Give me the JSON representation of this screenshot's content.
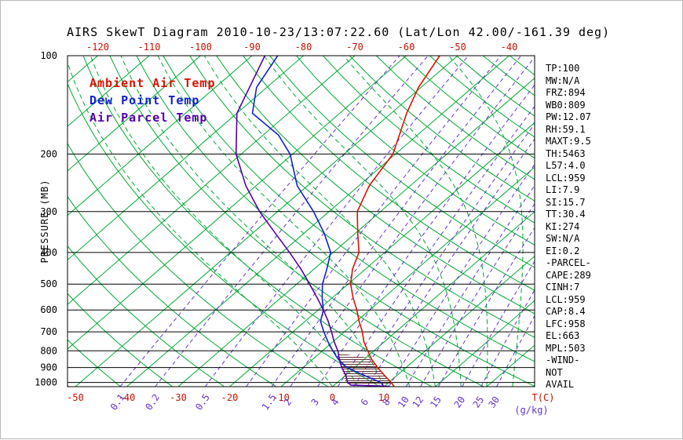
{
  "chart_data": {
    "type": "line",
    "title": "AIRS SkewT Diagram 2010-10-23/13:07:22.60 (Lat/Lon 42.00/-161.39 deg)",
    "x_axis": {
      "label": "T(C)",
      "unit": "C",
      "top_tick_labels": [
        -120,
        -110,
        -100,
        -90,
        -80,
        -70,
        -60,
        -50,
        -40
      ],
      "bottom_tick_labels": [
        -50,
        -40,
        -30,
        -20,
        -10,
        0,
        10
      ]
    },
    "y_axis": {
      "label": "PRESSURE (MB)",
      "scale": "log",
      "ticks": [
        100,
        200,
        300,
        400,
        500,
        600,
        700,
        800,
        900,
        1000
      ],
      "range": [
        100,
        1030
      ]
    },
    "mixing_ratio": {
      "label": "(g/kg)",
      "tick_labels": [
        0.1,
        0.2,
        0.5,
        1.5,
        2,
        3,
        4,
        6,
        8,
        10,
        12,
        15,
        20,
        25,
        30
      ],
      "line_values": [
        0.1,
        0.2,
        0.5,
        1,
        1.5,
        2,
        3,
        4,
        5,
        6,
        8,
        10,
        12,
        15,
        20,
        25,
        30
      ]
    },
    "isotherms": {
      "min": -120,
      "max": 40,
      "step": 10
    },
    "dry_adiabats_K": {
      "min": 220,
      "max": 460,
      "step": 10
    },
    "moist_adiabats_C": [
      0,
      5,
      10,
      15,
      20,
      25,
      30,
      35,
      40,
      45,
      50
    ],
    "series": [
      {
        "name": "Ambient Air Temp",
        "color": "#dd1100",
        "points": [
          [
            1030,
            12
          ],
          [
            1000,
            10.5
          ],
          [
            950,
            7.5
          ],
          [
            900,
            4.5
          ],
          [
            850,
            1.5
          ],
          [
            800,
            -1.2
          ],
          [
            750,
            -4
          ],
          [
            700,
            -6.5
          ],
          [
            650,
            -9.5
          ],
          [
            600,
            -12.5
          ],
          [
            550,
            -16
          ],
          [
            500,
            -19.5
          ],
          [
            450,
            -22.5
          ],
          [
            400,
            -25
          ],
          [
            350,
            -29.5
          ],
          [
            300,
            -34.5
          ],
          [
            250,
            -38
          ],
          [
            200,
            -40.5
          ],
          [
            175,
            -43.5
          ],
          [
            150,
            -47
          ],
          [
            125,
            -50.5
          ],
          [
            100,
            -53.5
          ]
        ]
      },
      {
        "name": "Dew Point Temp",
        "color": "#1122cc",
        "points": [
          [
            1030,
            10
          ],
          [
            1000,
            8.5
          ],
          [
            950,
            3.5
          ],
          [
            900,
            -1.5
          ],
          [
            850,
            -5
          ],
          [
            800,
            -8
          ],
          [
            750,
            -11
          ],
          [
            700,
            -14
          ],
          [
            650,
            -17
          ],
          [
            600,
            -19
          ],
          [
            550,
            -22
          ],
          [
            500,
            -25
          ],
          [
            450,
            -27.5
          ],
          [
            400,
            -30.5
          ],
          [
            350,
            -36
          ],
          [
            300,
            -43
          ],
          [
            250,
            -52
          ],
          [
            200,
            -60.5
          ],
          [
            175,
            -67
          ],
          [
            150,
            -77
          ],
          [
            125,
            -82
          ],
          [
            100,
            -85
          ]
        ]
      },
      {
        "name": "Air Parcel Temp",
        "color": "#5500aa",
        "points": [
          [
            1028,
            11
          ],
          [
            1018,
            3.2
          ],
          [
            1000,
            2
          ],
          [
            950,
            0
          ],
          [
            900,
            -2.5
          ],
          [
            850,
            -4.8
          ],
          [
            800,
            -7
          ],
          [
            750,
            -9.8
          ],
          [
            700,
            -12.5
          ],
          [
            650,
            -15.5
          ],
          [
            600,
            -19
          ],
          [
            550,
            -23
          ],
          [
            500,
            -27.5
          ],
          [
            450,
            -32.5
          ],
          [
            400,
            -38.5
          ],
          [
            350,
            -45.5
          ],
          [
            300,
            -53.5
          ],
          [
            250,
            -62
          ],
          [
            200,
            -71
          ],
          [
            150,
            -80
          ],
          [
            100,
            -87.5
          ]
        ]
      }
    ],
    "hatch_area": {
      "color": "#663333",
      "points": [
        [
          1018,
          2.8
        ],
        [
          990,
          1.2
        ],
        [
          960,
          0
        ],
        [
          930,
          -1.2
        ],
        [
          900,
          -2.5
        ],
        [
          870,
          -3.8
        ],
        [
          840,
          -5.2
        ],
        [
          815,
          -6.1
        ],
        [
          840,
          0.5
        ],
        [
          870,
          2.6
        ],
        [
          900,
          4.5
        ],
        [
          930,
          6.3
        ],
        [
          960,
          8.0
        ],
        [
          990,
          9.9
        ],
        [
          1018,
          11.3
        ]
      ]
    },
    "colors": {
      "isotherm": "#00aa33",
      "adiabat": "#00aa33",
      "moist": "#00aa33",
      "mixing": "#6633cc",
      "axis": "#000000",
      "tick_red": "#cc1100"
    },
    "legend_position": "top-left",
    "grid": true
  },
  "stats_panel": [
    "TP:100",
    "MW:N/A",
    "FRZ:894",
    "WB0:809",
    "PW:12.07",
    "RH:59.1",
    "MAXT:9.5",
    "TH:5463",
    "L57:4.0",
    "LCL:959",
    "LI:7.9",
    "SI:15.7",
    "TT:30.4",
    "KI:274",
    "SW:N/A",
    "EI:0.2",
    "-PARCEL-",
    "CAPE:289",
    "CINH:7",
    "LCL:959",
    "CAP:8.4",
    "LFC:958",
    "EL:663",
    "MPL:503",
    "-WIND-",
    "NOT",
    "AVAIL"
  ]
}
